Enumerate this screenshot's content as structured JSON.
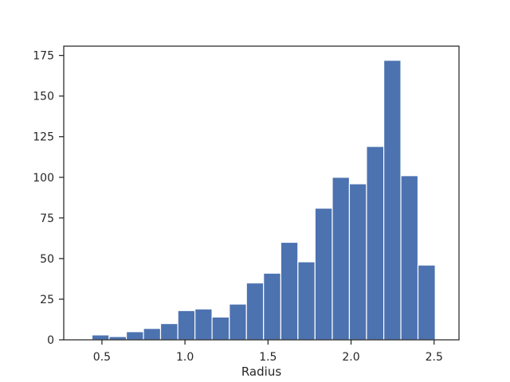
{
  "chart_data": {
    "type": "bar",
    "subtype": "histogram",
    "title": "",
    "xlabel": "Radius",
    "ylabel": "",
    "xlim": [
      0.27,
      2.65
    ],
    "ylim": [
      0,
      180.7
    ],
    "xticks": [
      0.5,
      1.0,
      1.5,
      2.0,
      2.5
    ],
    "xtick_labels": [
      "0.5",
      "1.0",
      "1.5",
      "2.0",
      "2.5"
    ],
    "yticks": [
      0,
      25,
      50,
      75,
      100,
      125,
      150,
      175
    ],
    "ytick_labels": [
      "0",
      "25",
      "50",
      "75",
      "100",
      "125",
      "150",
      "175"
    ],
    "bin_edges": [
      0.44,
      0.543,
      0.647,
      0.75,
      0.853,
      0.957,
      1.06,
      1.163,
      1.267,
      1.37,
      1.473,
      1.577,
      1.68,
      1.783,
      1.887,
      1.99,
      2.093,
      2.197,
      2.3,
      2.403,
      2.507
    ],
    "counts": [
      3,
      2,
      5,
      7,
      10,
      18,
      19,
      14,
      22,
      35,
      41,
      60,
      48,
      81,
      100,
      96,
      119,
      172,
      101,
      46
    ],
    "color": "#4c72b0",
    "grid": false,
    "legend": "none"
  }
}
